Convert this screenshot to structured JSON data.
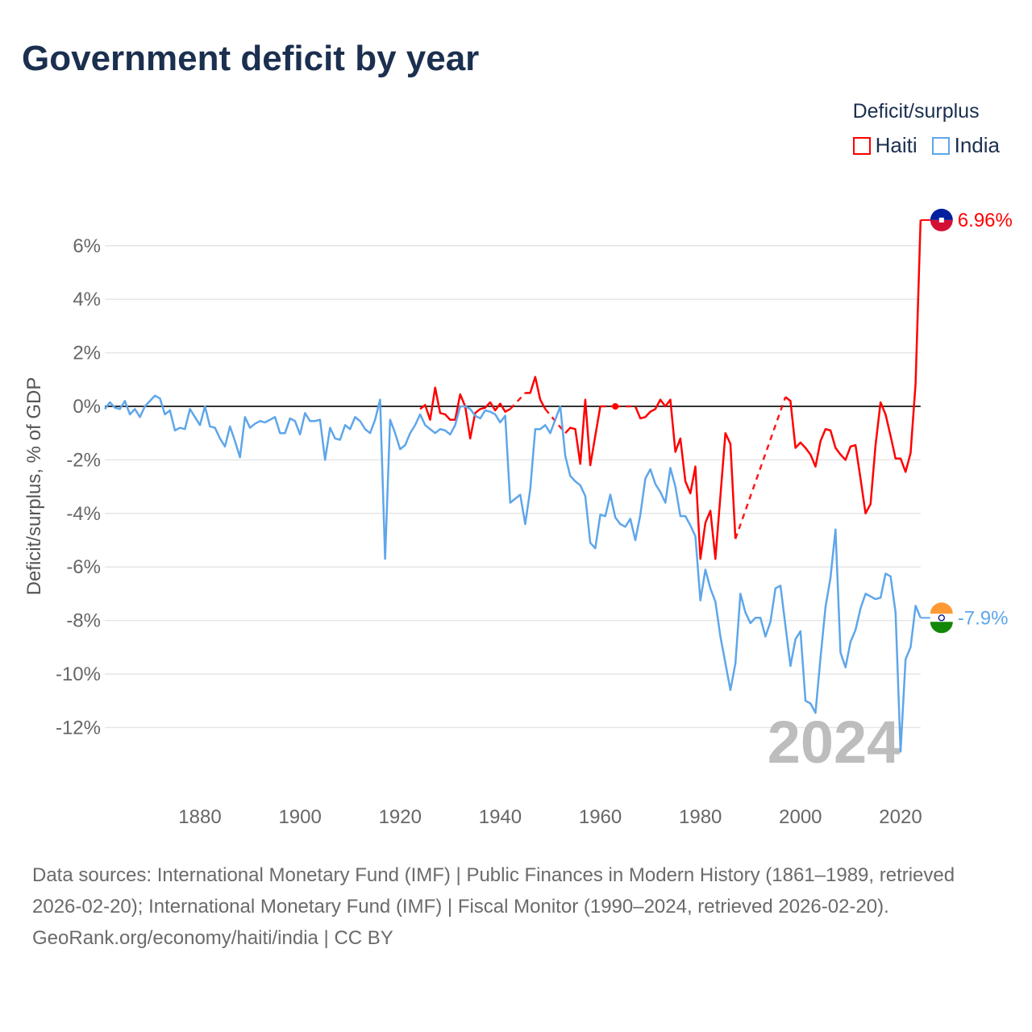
{
  "title": "Government deficit by year",
  "footer": {
    "sources": "Data sources: International Monetary Fund (IMF) | Public Finances in Modern History (1861–1989, retrieved 2026-02-20); International Monetary Fund (IMF) | Fiscal Monitor (1990–2024, retrieved 2026-02-20).",
    "credit": "GeoRank.org/economy/haiti/india | CC BY"
  },
  "chart_data": {
    "type": "line",
    "title": "Government deficit by year",
    "ylabel": "Deficit/surplus, % of GDP",
    "xlabel": "",
    "legend_title": "Deficit/surplus",
    "legend_position": "top-right",
    "year_watermark": "2024",
    "xlim": [
      1861,
      2024
    ],
    "ylim": [
      -13.5,
      7.5
    ],
    "yticks": [
      6,
      4,
      2,
      0,
      -2,
      -4,
      -6,
      -8,
      -10,
      -12
    ],
    "ytick_labels": [
      "6%",
      "4%",
      "2%",
      "0%",
      "-2%",
      "-4%",
      "-6%",
      "-8%",
      "-10%",
      "-12%"
    ],
    "xticks": [
      1880,
      1900,
      1920,
      1940,
      1960,
      1980,
      2000,
      2020
    ],
    "xtick_labels": [
      "1880",
      "1900",
      "1920",
      "1940",
      "1960",
      "1980",
      "2000",
      "2020"
    ],
    "grid": true,
    "series": [
      {
        "name": "Haiti",
        "color": "#ff0000",
        "flag_colors": [
          "#00209f",
          "#d21034"
        ],
        "end_label": "6.96%",
        "start_year": 1924,
        "values": [
          -0.1,
          0.05,
          -0.5,
          0.7,
          -0.25,
          -0.3,
          -0.5,
          -0.5,
          0.45,
          0,
          -1.2,
          -0.25,
          -0.1,
          -0.05,
          0.15,
          -0.15,
          0.1,
          -0.2,
          -0.1,
          null,
          null,
          0.5,
          0.5,
          1.1,
          0.25,
          -0.1,
          null,
          null,
          null,
          -1.0,
          -0.8,
          -0.85,
          -2.15,
          0.25,
          -2.2,
          -1.1,
          0,
          null,
          null,
          0,
          null,
          null,
          null,
          0,
          -0.45,
          -0.4,
          -0.2,
          -0.1,
          0.25,
          0,
          0.25,
          -1.7,
          -1.2,
          -2.8,
          -3.25,
          -2.25,
          -5.7,
          -4.35,
          -3.9,
          -5.7,
          -3.35,
          -1.0,
          -1.4,
          -4.95,
          null,
          null,
          null,
          null,
          null,
          null,
          null,
          null,
          null,
          0.35,
          0.2,
          -1.55,
          -1.35,
          -1.55,
          -1.8,
          -2.25,
          -1.3,
          -0.85,
          -0.9,
          -1.55,
          -1.8,
          -2.0,
          -1.5,
          -1.45,
          -2.7,
          -4.0,
          -3.65,
          -1.45,
          0.15,
          -0.3,
          -1.1,
          -1.95,
          -1.95,
          -2.45,
          -1.75,
          0.85,
          6.96
        ]
      },
      {
        "name": "India",
        "color": "#5ea6ea",
        "flag_colors": [
          "#ff9933",
          "#ffffff",
          "#138808"
        ],
        "end_label": "-7.9%",
        "start_year": 1861,
        "values": [
          -0.1,
          0.15,
          -0.05,
          -0.1,
          0.2,
          -0.3,
          -0.1,
          -0.4,
          0,
          0.2,
          0.4,
          0.3,
          -0.3,
          -0.15,
          -0.9,
          -0.8,
          -0.85,
          -0.1,
          -0.4,
          -0.7,
          0,
          -0.75,
          -0.8,
          -1.2,
          -1.5,
          -0.75,
          -1.3,
          -1.9,
          -0.4,
          -0.8,
          -0.65,
          -0.55,
          -0.6,
          -0.5,
          -0.4,
          -1.0,
          -1.0,
          -0.45,
          -0.55,
          -1.05,
          -0.25,
          -0.55,
          -0.55,
          -0.5,
          -2.0,
          -0.8,
          -1.2,
          -1.25,
          -0.7,
          -0.85,
          -0.4,
          -0.55,
          -0.85,
          -1.0,
          -0.5,
          0.25,
          -5.7,
          -0.5,
          -1.0,
          -1.6,
          -1.45,
          -1.0,
          -0.7,
          -0.3,
          -0.7,
          -0.85,
          -1.0,
          -0.85,
          -0.9,
          -1.05,
          -0.7,
          0,
          0,
          -0.1,
          -0.35,
          -0.45,
          -0.15,
          -0.2,
          -0.3,
          -0.6,
          -0.35,
          -3.6,
          -3.45,
          -3.3,
          -4.4,
          -3.1,
          -0.85,
          -0.85,
          -0.7,
          -1.0,
          -0.5,
          0,
          -1.85,
          -2.6,
          -2.8,
          -2.95,
          -3.35,
          -5.1,
          -5.3,
          -4.05,
          -4.1,
          -3.3,
          -4.15,
          -4.4,
          -4.5,
          -4.2,
          -5.0,
          -4.05,
          -2.7,
          -2.35,
          -2.9,
          -3.2,
          -3.6,
          -2.3,
          -3.0,
          -4.1,
          -4.1,
          -4.45,
          -4.85,
          -7.25,
          -6.1,
          -6.8,
          -7.3,
          -8.6,
          -9.6,
          -10.6,
          -9.6,
          -7.0,
          -7.7,
          -8.1,
          -7.9,
          -7.9,
          -8.6,
          -8.05,
          -6.8,
          -6.7,
          -8.2,
          -9.7,
          -8.7,
          -8.4,
          -11.0,
          -11.1,
          -11.45,
          -9.4,
          -7.5,
          -6.4,
          -4.6,
          -9.2,
          -9.75,
          -8.8,
          -8.35,
          -7.55,
          -7.0,
          -7.1,
          -7.2,
          -7.15,
          -6.25,
          -6.35,
          -7.7,
          -12.9,
          -9.45,
          -9.0,
          -7.45,
          -7.9
        ]
      }
    ]
  }
}
